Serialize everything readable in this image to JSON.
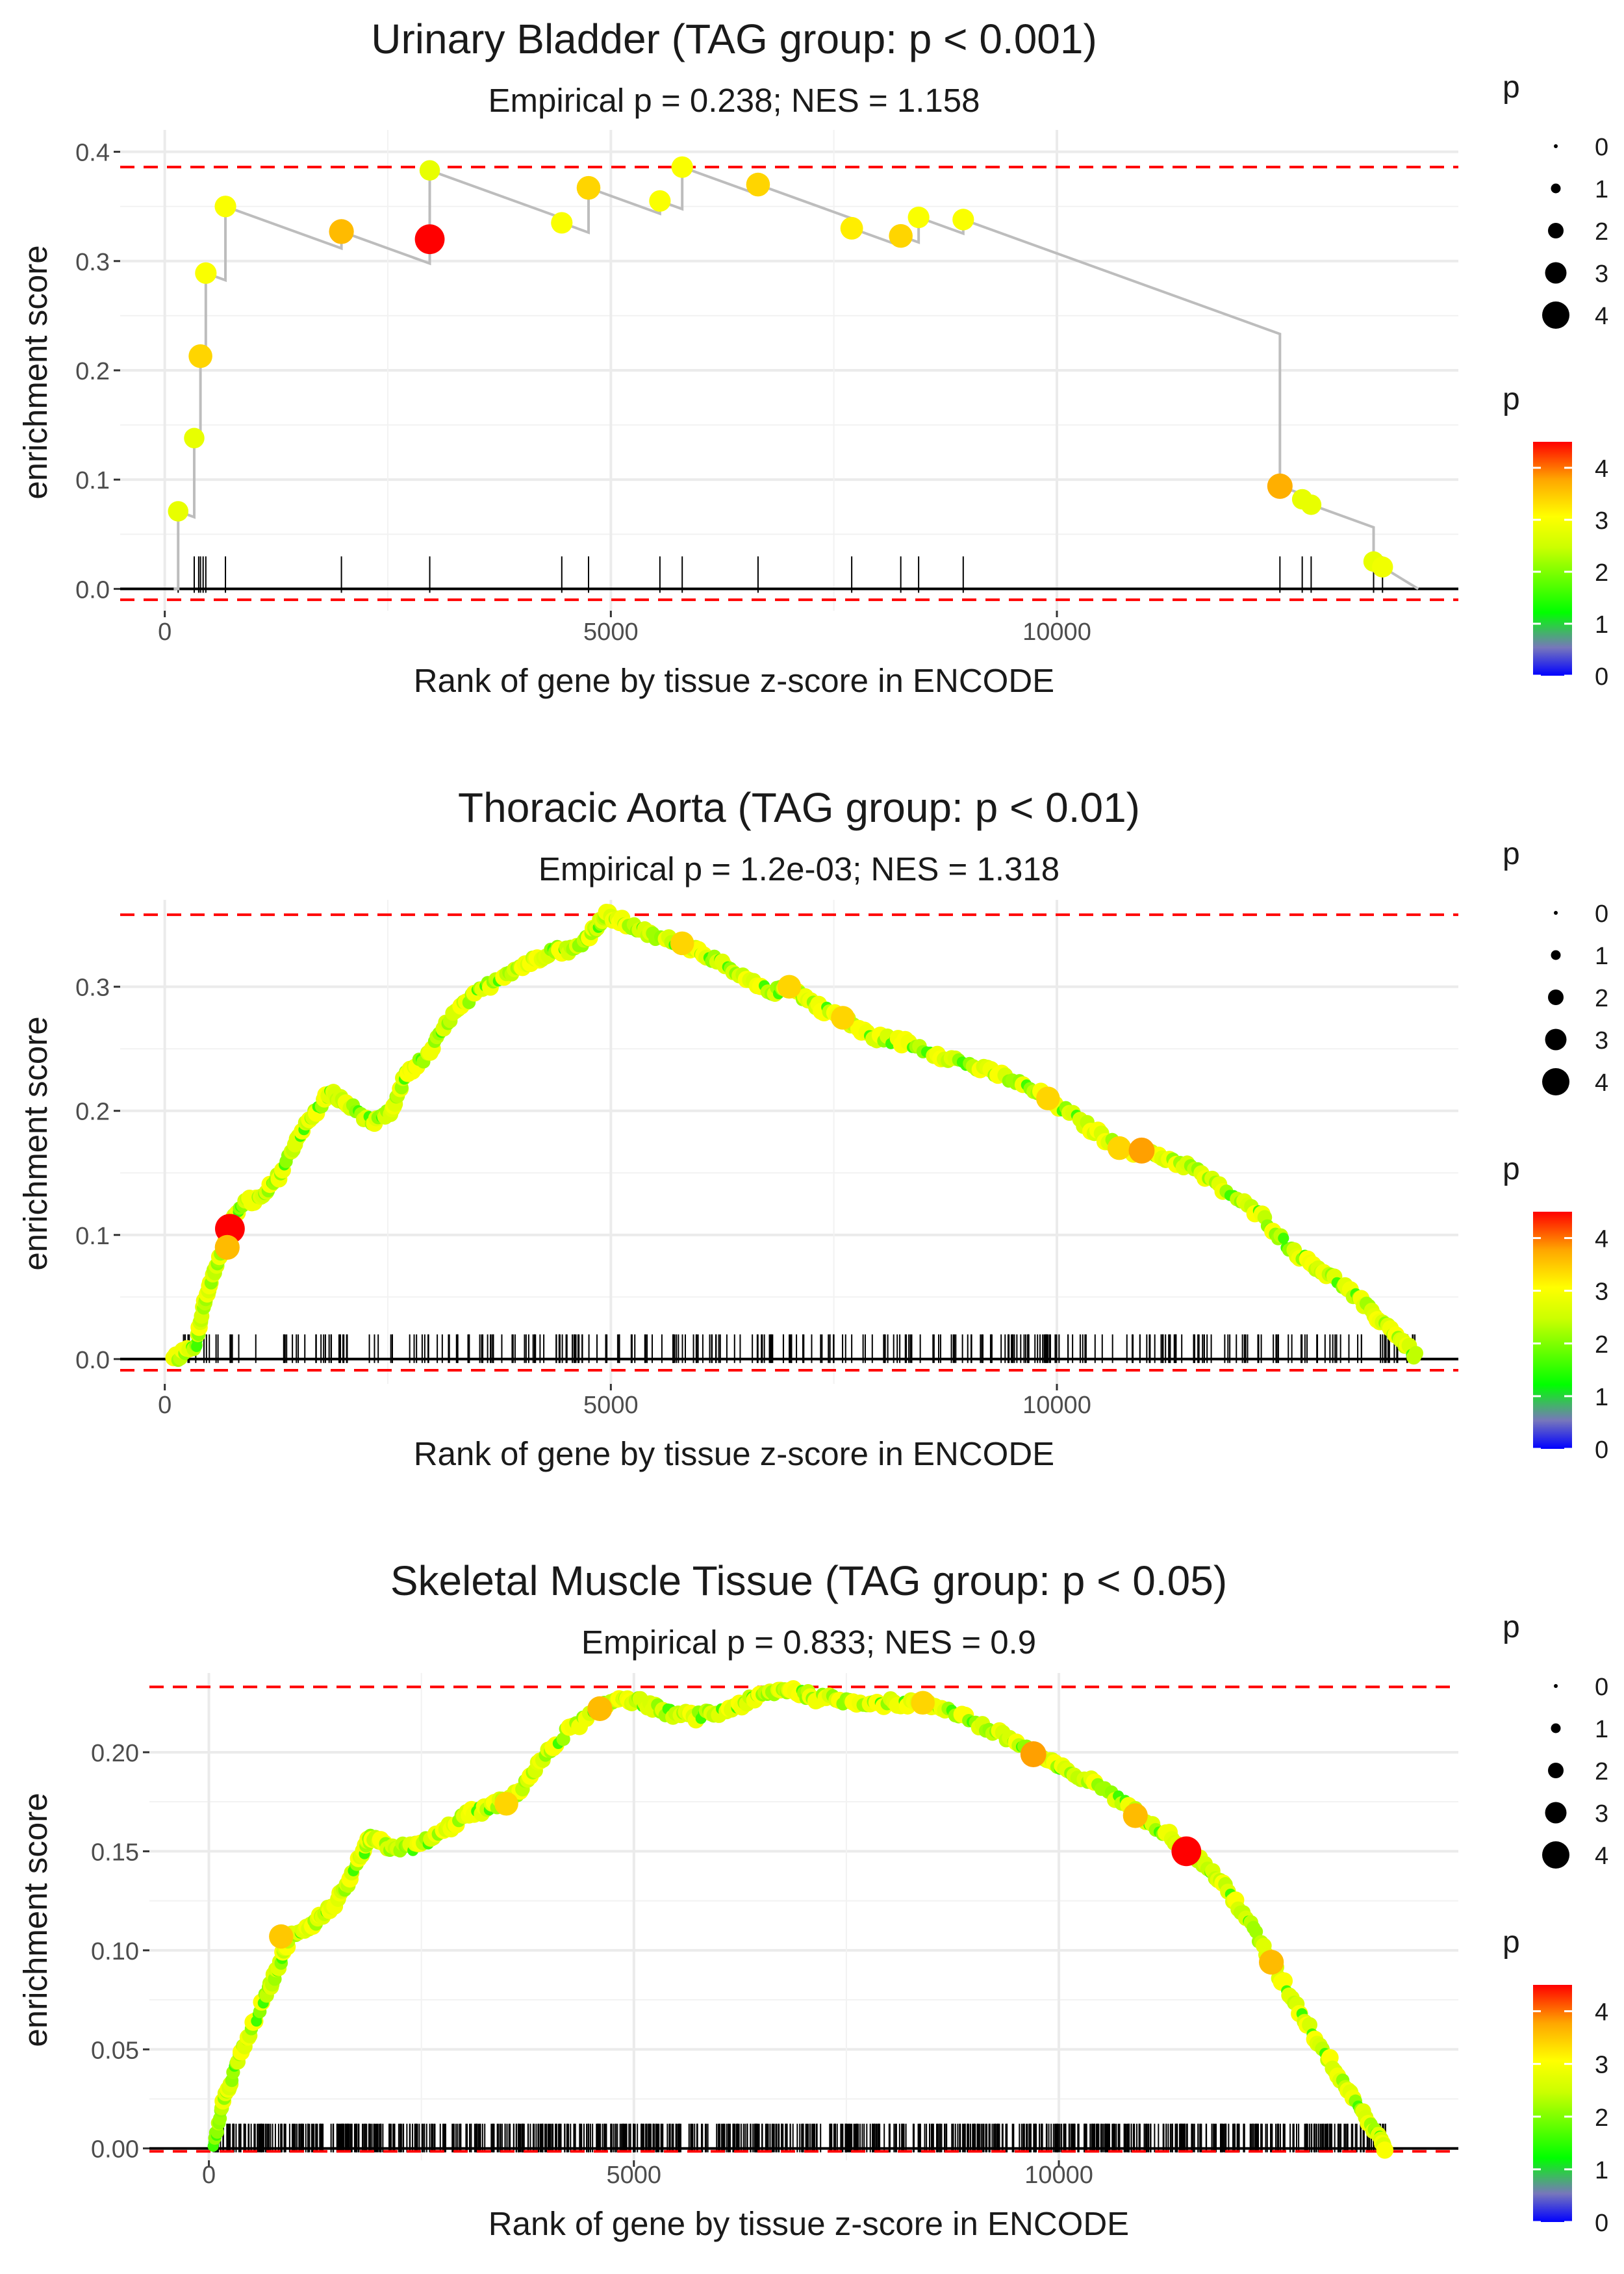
{
  "chart_data": [
    {
      "type": "scatter",
      "title": "Urinary Bladder (TAG group: p < 0.001)",
      "subtitle": "Empirical p = 0.238; NES = 1.158",
      "xlabel": "Rank of gene by tissue z-score in ENCODE",
      "ylabel": "enrichment score",
      "xlim": [
        -500,
        14500
      ],
      "ylim": [
        -0.02,
        0.42
      ],
      "xticks": [
        0,
        5000,
        10000
      ],
      "xtick_labels": [
        "0",
        "5000",
        "10000"
      ],
      "yticks": [
        0.0,
        0.1,
        0.2,
        0.3,
        0.4
      ],
      "ytick_labels": [
        "0.0",
        "0.1",
        "0.2",
        "0.3",
        "0.4"
      ],
      "ref_lines": [
        0.386,
        -0.01
      ],
      "gene_ranks": [
        150,
        330,
        380,
        400,
        430,
        460,
        680,
        1980,
        2970,
        4450,
        4750,
        5550,
        5800,
        6650,
        7700,
        8250,
        8450,
        8950,
        12500,
        12750,
        12850,
        13550,
        13650
      ],
      "points": [
        {
          "x": 150,
          "y": 0.071,
          "p": 2.8
        },
        {
          "x": 330,
          "y": 0.138,
          "p": 2.8
        },
        {
          "x": 400,
          "y": 0.213,
          "p": 3.4
        },
        {
          "x": 460,
          "y": 0.289,
          "p": 3.0
        },
        {
          "x": 680,
          "y": 0.35,
          "p": 3.0
        },
        {
          "x": 1980,
          "y": 0.327,
          "p": 3.6
        },
        {
          "x": 2970,
          "y": 0.32,
          "p": 4.5
        },
        {
          "x": 2970,
          "y": 0.383,
          "p": 2.8
        },
        {
          "x": 4450,
          "y": 0.335,
          "p": 3.0
        },
        {
          "x": 4750,
          "y": 0.367,
          "p": 3.4
        },
        {
          "x": 5550,
          "y": 0.355,
          "p": 3.0
        },
        {
          "x": 5800,
          "y": 0.386,
          "p": 3.0
        },
        {
          "x": 6650,
          "y": 0.37,
          "p": 3.4
        },
        {
          "x": 7700,
          "y": 0.33,
          "p": 3.2
        },
        {
          "x": 8250,
          "y": 0.323,
          "p": 3.4
        },
        {
          "x": 8450,
          "y": 0.34,
          "p": 3.0
        },
        {
          "x": 8950,
          "y": 0.338,
          "p": 3.0
        },
        {
          "x": 12500,
          "y": 0.094,
          "p": 3.7
        },
        {
          "x": 12750,
          "y": 0.082,
          "p": 2.8
        },
        {
          "x": 12850,
          "y": 0.077,
          "p": 2.8
        },
        {
          "x": 13550,
          "y": 0.025,
          "p": 2.8
        },
        {
          "x": 13650,
          "y": 0.02,
          "p": 2.9
        }
      ],
      "legend_size": {
        "title": "p",
        "values": [
          "0",
          "1",
          "2",
          "3",
          "4"
        ]
      },
      "legend_color": {
        "title": "p",
        "labels": [
          "4",
          "3",
          "2",
          "1",
          "0"
        ]
      }
    },
    {
      "type": "scatter",
      "title": "Thoracic Aorta (TAG group: p < 0.01)",
      "subtitle": "Empirical p = 1.2e-03; NES = 1.318",
      "xlabel": "Rank of gene by tissue z-score in ENCODE",
      "ylabel": "enrichment score",
      "xlim": [
        -500,
        14500
      ],
      "ylim": [
        -0.02,
        0.37
      ],
      "xticks": [
        0,
        5000,
        10000
      ],
      "xtick_labels": [
        "0",
        "5000",
        "10000"
      ],
      "yticks": [
        0.0,
        0.1,
        0.2,
        0.3
      ],
      "ytick_labels": [
        "0.0",
        "0.1",
        "0.2",
        "0.3"
      ],
      "ref_lines": [
        0.358,
        -0.009
      ],
      "curve": [
        [
          100,
          0
        ],
        [
          350,
          0.01
        ],
        [
          420,
          0.04
        ],
        [
          500,
          0.06
        ],
        [
          600,
          0.08
        ],
        [
          730,
          0.105
        ],
        [
          850,
          0.125
        ],
        [
          1100,
          0.13
        ],
        [
          1300,
          0.15
        ],
        [
          1500,
          0.18
        ],
        [
          1700,
          0.2
        ],
        [
          1850,
          0.215
        ],
        [
          2050,
          0.205
        ],
        [
          2350,
          0.19
        ],
        [
          2550,
          0.2
        ],
        [
          2700,
          0.23
        ],
        [
          2950,
          0.245
        ],
        [
          3200,
          0.275
        ],
        [
          3500,
          0.295
        ],
        [
          3800,
          0.31
        ],
        [
          4100,
          0.32
        ],
        [
          4350,
          0.33
        ],
        [
          4600,
          0.33
        ],
        [
          4800,
          0.345
        ],
        [
          4950,
          0.358
        ],
        [
          5200,
          0.35
        ],
        [
          5500,
          0.34
        ],
        [
          5800,
          0.335
        ],
        [
          6100,
          0.325
        ],
        [
          6400,
          0.31
        ],
        [
          6800,
          0.295
        ],
        [
          7000,
          0.3
        ],
        [
          7300,
          0.285
        ],
        [
          7600,
          0.275
        ],
        [
          7900,
          0.26
        ],
        [
          8300,
          0.255
        ],
        [
          8700,
          0.245
        ],
        [
          9100,
          0.235
        ],
        [
          9500,
          0.225
        ],
        [
          9900,
          0.21
        ],
        [
          10300,
          0.19
        ],
        [
          10700,
          0.17
        ],
        [
          11100,
          0.165
        ],
        [
          11500,
          0.155
        ],
        [
          11900,
          0.135
        ],
        [
          12300,
          0.115
        ],
        [
          12600,
          0.09
        ],
        [
          12900,
          0.075
        ],
        [
          13200,
          0.06
        ],
        [
          13500,
          0.04
        ],
        [
          13800,
          0.02
        ],
        [
          14050,
          0.0
        ]
      ],
      "gene_ranks_count": 330,
      "gene_ranks_range": [
        150,
        14050
      ],
      "points": [
        {
          "x": 730,
          "y": 0.105,
          "p": 4.5
        },
        {
          "x": 700,
          "y": 0.09,
          "p": 3.6
        },
        {
          "x": 5800,
          "y": 0.335,
          "p": 3.4
        },
        {
          "x": 7000,
          "y": 0.3,
          "p": 3.4
        },
        {
          "x": 7600,
          "y": 0.275,
          "p": 3.4
        },
        {
          "x": 9900,
          "y": 0.21,
          "p": 3.4
        },
        {
          "x": 10700,
          "y": 0.17,
          "p": 3.4
        },
        {
          "x": 10950,
          "y": 0.168,
          "p": 3.8
        }
      ],
      "legend_size": {
        "title": "p",
        "values": [
          "0",
          "1",
          "2",
          "3",
          "4"
        ]
      },
      "legend_color": {
        "title": "p",
        "labels": [
          "4",
          "3",
          "2",
          "1",
          "0"
        ]
      }
    },
    {
      "type": "scatter",
      "title": "Skeletal Muscle Tissue (TAG group: p < 0.05)",
      "subtitle": "Empirical p = 0.833; NES = 0.9",
      "xlabel": "Rank of gene by tissue z-score in ENCODE",
      "ylabel": "enrichment score",
      "xlim": [
        -700,
        14700
      ],
      "ylim": [
        -0.006,
        0.24
      ],
      "xticks": [
        0,
        5000,
        10000
      ],
      "xtick_labels": [
        "0",
        "5000",
        "10000"
      ],
      "yticks": [
        0.0,
        0.05,
        0.1,
        0.15,
        0.2
      ],
      "ytick_labels": [
        "0.00",
        "0.05",
        "0.10",
        "0.15",
        "0.20"
      ],
      "ref_lines": [
        0.233,
        -0.0015
      ],
      "curve": [
        [
          50,
          0
        ],
        [
          150,
          0.02
        ],
        [
          300,
          0.04
        ],
        [
          500,
          0.06
        ],
        [
          700,
          0.08
        ],
        [
          850,
          0.095
        ],
        [
          950,
          0.107
        ],
        [
          1200,
          0.113
        ],
        [
          1400,
          0.12
        ],
        [
          1600,
          0.13
        ],
        [
          1800,
          0.148
        ],
        [
          1900,
          0.157
        ],
        [
          2100,
          0.152
        ],
        [
          2400,
          0.152
        ],
        [
          2700,
          0.158
        ],
        [
          3000,
          0.168
        ],
        [
          3300,
          0.172
        ],
        [
          3600,
          0.178
        ],
        [
          3900,
          0.195
        ],
        [
          4200,
          0.21
        ],
        [
          4600,
          0.222
        ],
        [
          4850,
          0.228
        ],
        [
          5100,
          0.225
        ],
        [
          5400,
          0.22
        ],
        [
          5700,
          0.218
        ],
        [
          6000,
          0.22
        ],
        [
          6300,
          0.225
        ],
        [
          6600,
          0.23
        ],
        [
          6850,
          0.232
        ],
        [
          7100,
          0.228
        ],
        [
          7500,
          0.226
        ],
        [
          7900,
          0.225
        ],
        [
          8300,
          0.225
        ],
        [
          8700,
          0.222
        ],
        [
          9100,
          0.213
        ],
        [
          9500,
          0.205
        ],
        [
          9800,
          0.197
        ],
        [
          10100,
          0.19
        ],
        [
          10500,
          0.183
        ],
        [
          10900,
          0.17
        ],
        [
          11300,
          0.158
        ],
        [
          11600,
          0.148
        ],
        [
          11900,
          0.135
        ],
        [
          12200,
          0.117
        ],
        [
          12500,
          0.094
        ],
        [
          12800,
          0.072
        ],
        [
          13100,
          0.05
        ],
        [
          13400,
          0.03
        ],
        [
          13700,
          0.01
        ],
        [
          13850,
          0.0
        ]
      ],
      "gene_ranks_count": 900,
      "gene_ranks_range": [
        50,
        13850
      ],
      "points": [
        {
          "x": 850,
          "y": 0.107,
          "p": 3.5
        },
        {
          "x": 3500,
          "y": 0.174,
          "p": 3.4
        },
        {
          "x": 4600,
          "y": 0.222,
          "p": 3.6
        },
        {
          "x": 8400,
          "y": 0.225,
          "p": 3.4
        },
        {
          "x": 9700,
          "y": 0.199,
          "p": 3.8
        },
        {
          "x": 10900,
          "y": 0.168,
          "p": 3.6
        },
        {
          "x": 11500,
          "y": 0.15,
          "p": 4.5
        },
        {
          "x": 12500,
          "y": 0.094,
          "p": 3.6
        }
      ],
      "legend_size": {
        "title": "p",
        "values": [
          "0",
          "1",
          "2",
          "3",
          "4"
        ]
      },
      "legend_color": {
        "title": "p",
        "labels": [
          "4",
          "3",
          "2",
          "1",
          "0"
        ]
      }
    }
  ]
}
